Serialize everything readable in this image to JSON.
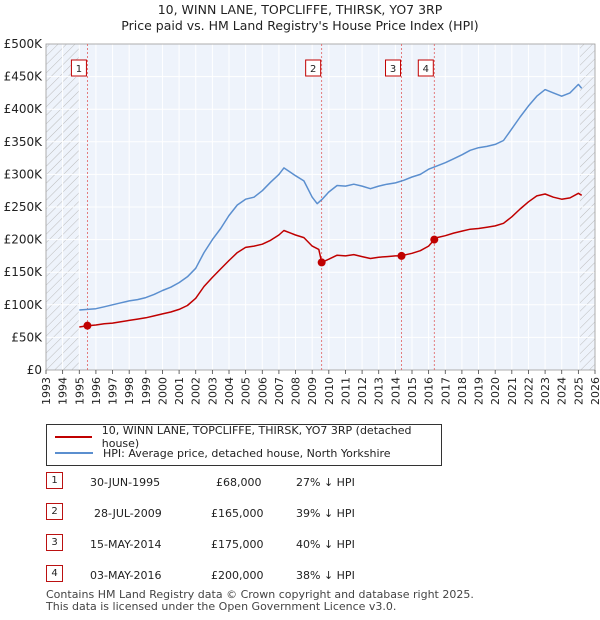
{
  "title": {
    "line1": "10, WINN LANE, TOPCLIFFE, THIRSK, YO7 3RP",
    "line2": "Price paid vs. HM Land Registry's House Price Index (HPI)"
  },
  "chart_data": {
    "type": "line",
    "x_range": [
      1993,
      2026
    ],
    "ylim": [
      0,
      500000
    ],
    "y_ticks": [
      {
        "value": 0,
        "label": "£0"
      },
      {
        "value": 50000,
        "label": "£50K"
      },
      {
        "value": 100000,
        "label": "£100K"
      },
      {
        "value": 150000,
        "label": "£150K"
      },
      {
        "value": 200000,
        "label": "£200K"
      },
      {
        "value": 250000,
        "label": "£250K"
      },
      {
        "value": 300000,
        "label": "£300K"
      },
      {
        "value": 350000,
        "label": "£350K"
      },
      {
        "value": 400000,
        "label": "£400K"
      },
      {
        "value": 450000,
        "label": "£450K"
      },
      {
        "value": 500000,
        "label": "£500K"
      }
    ],
    "x_ticks": [
      "1993",
      "1994",
      "1995",
      "1996",
      "1997",
      "1998",
      "1999",
      "2000",
      "2001",
      "2002",
      "2003",
      "2004",
      "2005",
      "2006",
      "2007",
      "2008",
      "2009",
      "2010",
      "2011",
      "2012",
      "2013",
      "2014",
      "2015",
      "2016",
      "2017",
      "2018",
      "2019",
      "2020",
      "2021",
      "2022",
      "2023",
      "2024",
      "2025",
      "2026"
    ],
    "hatched_before": 1995.0,
    "hatched_after": 2025.1,
    "series": [
      {
        "name": "HPI: Average price, detached house, North Yorkshire",
        "color": "#5b8fcf",
        "points": [
          [
            1995,
            92000
          ],
          [
            1995.5,
            93000
          ],
          [
            1996,
            94000
          ],
          [
            1996.5,
            97000
          ],
          [
            1997,
            100000
          ],
          [
            1997.5,
            103000
          ],
          [
            1998,
            106000
          ],
          [
            1998.5,
            108000
          ],
          [
            1999,
            111000
          ],
          [
            1999.5,
            116000
          ],
          [
            2000,
            122000
          ],
          [
            2000.5,
            127000
          ],
          [
            2001,
            134000
          ],
          [
            2001.5,
            143000
          ],
          [
            2002,
            156000
          ],
          [
            2002.5,
            180000
          ],
          [
            2003,
            200000
          ],
          [
            2003.5,
            217000
          ],
          [
            2004,
            237000
          ],
          [
            2004.5,
            253000
          ],
          [
            2005,
            262000
          ],
          [
            2005.5,
            265000
          ],
          [
            2006,
            275000
          ],
          [
            2006.5,
            288000
          ],
          [
            2007,
            300000
          ],
          [
            2007.3,
            310000
          ],
          [
            2007.7,
            303000
          ],
          [
            2008,
            298000
          ],
          [
            2008.5,
            290000
          ],
          [
            2009,
            265000
          ],
          [
            2009.3,
            255000
          ],
          [
            2009.6,
            262000
          ],
          [
            2010,
            273000
          ],
          [
            2010.5,
            283000
          ],
          [
            2011,
            282000
          ],
          [
            2011.5,
            285000
          ],
          [
            2012,
            282000
          ],
          [
            2012.5,
            278000
          ],
          [
            2013,
            282000
          ],
          [
            2013.5,
            285000
          ],
          [
            2014,
            287000
          ],
          [
            2014.5,
            291000
          ],
          [
            2015,
            296000
          ],
          [
            2015.5,
            300000
          ],
          [
            2016,
            308000
          ],
          [
            2016.5,
            313000
          ],
          [
            2017,
            318000
          ],
          [
            2017.5,
            324000
          ],
          [
            2018,
            330000
          ],
          [
            2018.5,
            337000
          ],
          [
            2019,
            341000
          ],
          [
            2019.5,
            343000
          ],
          [
            2020,
            346000
          ],
          [
            2020.5,
            352000
          ],
          [
            2021,
            370000
          ],
          [
            2021.5,
            388000
          ],
          [
            2022,
            405000
          ],
          [
            2022.5,
            420000
          ],
          [
            2023,
            430000
          ],
          [
            2023.5,
            425000
          ],
          [
            2024,
            420000
          ],
          [
            2024.5,
            425000
          ],
          [
            2025,
            438000
          ],
          [
            2025.2,
            432000
          ]
        ]
      },
      {
        "name": "10, WINN LANE, TOPCLIFFE, THIRSK, YO7 3RP (detached house)",
        "color": "#c00000",
        "points": [
          [
            1995,
            66000
          ],
          [
            1995.5,
            68000
          ],
          [
            1996,
            69000
          ],
          [
            1996.5,
            71000
          ],
          [
            1997,
            72000
          ],
          [
            1997.5,
            74000
          ],
          [
            1998,
            76000
          ],
          [
            1998.5,
            78000
          ],
          [
            1999,
            80000
          ],
          [
            1999.5,
            83000
          ],
          [
            2000,
            86000
          ],
          [
            2000.5,
            89000
          ],
          [
            2001,
            93000
          ],
          [
            2001.5,
            99000
          ],
          [
            2002,
            110000
          ],
          [
            2002.5,
            128000
          ],
          [
            2003,
            142000
          ],
          [
            2003.5,
            155000
          ],
          [
            2004,
            168000
          ],
          [
            2004.5,
            180000
          ],
          [
            2005,
            188000
          ],
          [
            2005.5,
            190000
          ],
          [
            2006,
            193000
          ],
          [
            2006.5,
            199000
          ],
          [
            2007,
            207000
          ],
          [
            2007.3,
            214000
          ],
          [
            2007.7,
            210000
          ],
          [
            2008,
            207000
          ],
          [
            2008.5,
            203000
          ],
          [
            2009,
            190000
          ],
          [
            2009.4,
            185000
          ],
          [
            2009.57,
            165000
          ],
          [
            2010,
            170000
          ],
          [
            2010.5,
            176000
          ],
          [
            2011,
            175000
          ],
          [
            2011.5,
            177000
          ],
          [
            2012,
            174000
          ],
          [
            2012.5,
            171000
          ],
          [
            2013,
            173000
          ],
          [
            2013.5,
            174000
          ],
          [
            2014,
            175000
          ],
          [
            2014.37,
            175000
          ],
          [
            2014.5,
            176000
          ],
          [
            2015,
            179000
          ],
          [
            2015.5,
            183000
          ],
          [
            2016,
            190000
          ],
          [
            2016.34,
            200000
          ],
          [
            2016.5,
            203000
          ],
          [
            2017,
            206000
          ],
          [
            2017.5,
            210000
          ],
          [
            2018,
            213000
          ],
          [
            2018.5,
            216000
          ],
          [
            2019,
            217000
          ],
          [
            2019.5,
            219000
          ],
          [
            2020,
            221000
          ],
          [
            2020.5,
            225000
          ],
          [
            2021,
            235000
          ],
          [
            2021.5,
            247000
          ],
          [
            2022,
            258000
          ],
          [
            2022.5,
            267000
          ],
          [
            2023,
            270000
          ],
          [
            2023.5,
            265000
          ],
          [
            2024,
            262000
          ],
          [
            2024.5,
            264000
          ],
          [
            2025,
            271000
          ],
          [
            2025.2,
            268000
          ]
        ]
      }
    ],
    "sales": [
      {
        "num": "1",
        "x": 1995.49,
        "y": 68000,
        "date": "30-JUN-1995",
        "price": "£68,000",
        "hpi": "27% ↓ HPI"
      },
      {
        "num": "2",
        "x": 2009.57,
        "y": 165000,
        "date": "28-JUL-2009",
        "price": "£165,000",
        "hpi": "39% ↓ HPI"
      },
      {
        "num": "3",
        "x": 2014.37,
        "y": 175000,
        "date": "15-MAY-2014",
        "price": "£175,000",
        "hpi": "40% ↓ HPI"
      },
      {
        "num": "4",
        "x": 2016.34,
        "y": 200000,
        "date": "03-MAY-2016",
        "price": "£200,000",
        "hpi": "38% ↓ HPI"
      }
    ]
  },
  "legend": {
    "property_label": "10, WINN LANE, TOPCLIFFE, THIRSK, YO7 3RP (detached house)",
    "hpi_label": "HPI: Average price, detached house, North Yorkshire",
    "property_color": "#c00000",
    "hpi_color": "#5b8fcf"
  },
  "footer": {
    "line1": "Contains HM Land Registry data © Crown copyright and database right 2025.",
    "line2": "This data is licensed under the Open Government Licence v3.0."
  }
}
